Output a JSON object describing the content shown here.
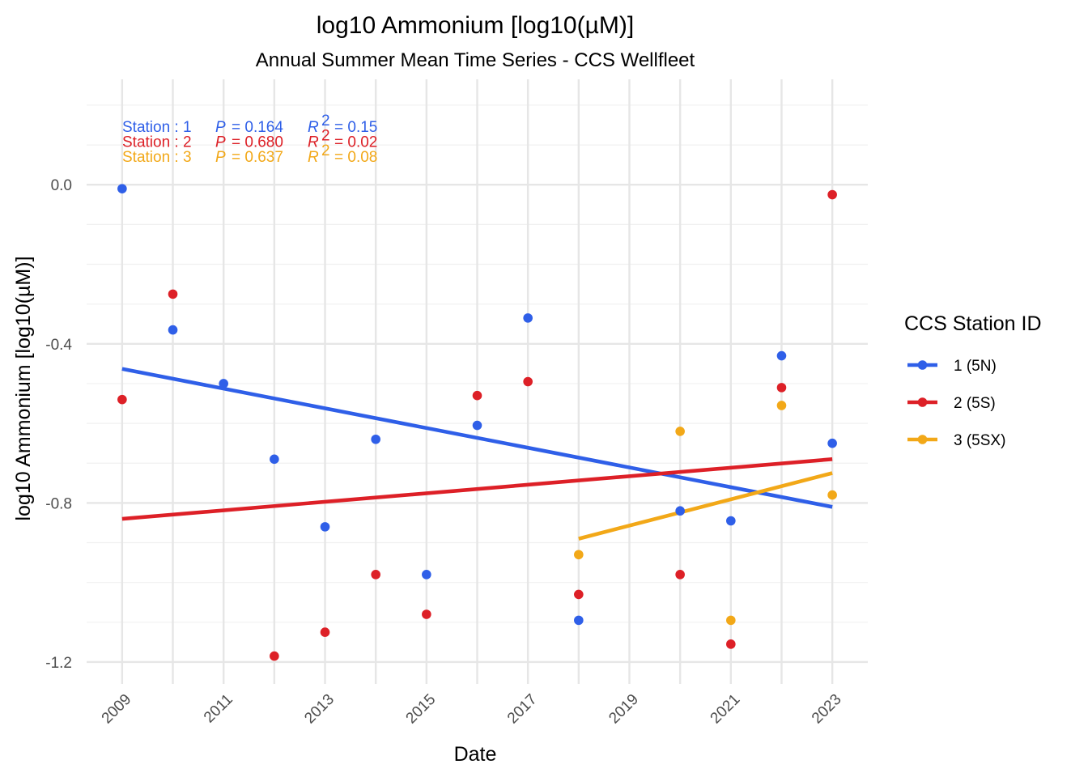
{
  "chart_data": {
    "type": "scatter",
    "title": "log10 Ammonium [log10(µM)]",
    "subtitle": "Annual Summer Mean Time Series - CCS Wellfleet",
    "xlabel": "Date",
    "ylabel": "log10 Ammonium [log10(µM)]",
    "xlim": [
      2008.3,
      2023.7
    ],
    "ylim": [
      -1.255,
      0.265
    ],
    "x_ticks": [
      2009,
      2011,
      2013,
      2015,
      2017,
      2019,
      2021,
      2023
    ],
    "x_tick_labels": [
      "2009",
      "2011",
      "2013",
      "2015",
      "2017",
      "2019",
      "2021",
      "2023"
    ],
    "y_ticks": [
      0.0,
      -0.4,
      -0.8,
      -1.2
    ],
    "y_tick_labels": [
      "0.0",
      "-0.4",
      "-0.8",
      "-1.2"
    ],
    "grid": true,
    "legend": {
      "title": "CCS Station ID",
      "position": "right",
      "entries": [
        "1 (5N)",
        "2 (5S)",
        "3 (5SX)"
      ]
    },
    "series": [
      {
        "name": "1 (5N)",
        "color": "#2f5fe8",
        "points": [
          {
            "x": 2009,
            "y": -0.01
          },
          {
            "x": 2010,
            "y": -0.365
          },
          {
            "x": 2011,
            "y": -0.5
          },
          {
            "x": 2012,
            "y": -0.69
          },
          {
            "x": 2013,
            "y": -0.86
          },
          {
            "x": 2014,
            "y": -0.64
          },
          {
            "x": 2015,
            "y": -0.98
          },
          {
            "x": 2016,
            "y": -0.605
          },
          {
            "x": 2017,
            "y": -0.335
          },
          {
            "x": 2018,
            "y": -1.095
          },
          {
            "x": 2020,
            "y": -0.82
          },
          {
            "x": 2021,
            "y": -0.845
          },
          {
            "x": 2022,
            "y": -0.43
          },
          {
            "x": 2023,
            "y": -0.65
          }
        ],
        "fit": {
          "x": [
            2009,
            2023
          ],
          "y": [
            -0.463,
            -0.81
          ]
        }
      },
      {
        "name": "2 (5S)",
        "color": "#dd2027",
        "points": [
          {
            "x": 2009,
            "y": -0.54
          },
          {
            "x": 2010,
            "y": -0.275
          },
          {
            "x": 2012,
            "y": -1.185
          },
          {
            "x": 2013,
            "y": -1.125
          },
          {
            "x": 2014,
            "y": -0.98
          },
          {
            "x": 2015,
            "y": -1.08
          },
          {
            "x": 2016,
            "y": -0.53
          },
          {
            "x": 2017,
            "y": -0.495
          },
          {
            "x": 2018,
            "y": -1.03
          },
          {
            "x": 2020,
            "y": -0.98
          },
          {
            "x": 2021,
            "y": -1.155
          },
          {
            "x": 2022,
            "y": -0.51
          },
          {
            "x": 2023,
            "y": -0.025
          }
        ],
        "fit": {
          "x": [
            2009,
            2023
          ],
          "y": [
            -0.84,
            -0.69
          ]
        }
      },
      {
        "name": "3 (5SX)",
        "color": "#f2a818",
        "points": [
          {
            "x": 2018,
            "y": -0.93
          },
          {
            "x": 2020,
            "y": -0.62
          },
          {
            "x": 2021,
            "y": -1.095
          },
          {
            "x": 2022,
            "y": -0.555
          },
          {
            "x": 2023,
            "y": -0.78
          }
        ],
        "fit": {
          "x": [
            2018,
            2023
          ],
          "y": [
            -0.89,
            -0.725
          ]
        }
      }
    ],
    "annotations": [
      {
        "station": "Station : 1",
        "p_label": "P",
        "p_value": "= 0.164",
        "r_label": "R",
        "r_sup": "2",
        "r_value": "= 0.15",
        "color": "#2f5fe8"
      },
      {
        "station": "Station : 2",
        "p_label": "P",
        "p_value": "= 0.680",
        "r_label": "R",
        "r_sup": "2",
        "r_value": "= 0.02",
        "color": "#dd2027"
      },
      {
        "station": "Station : 3",
        "p_label": "P",
        "p_value": "= 0.637",
        "r_label": "R",
        "r_sup": "2",
        "r_value": "= 0.08",
        "color": "#f2a818"
      }
    ]
  }
}
